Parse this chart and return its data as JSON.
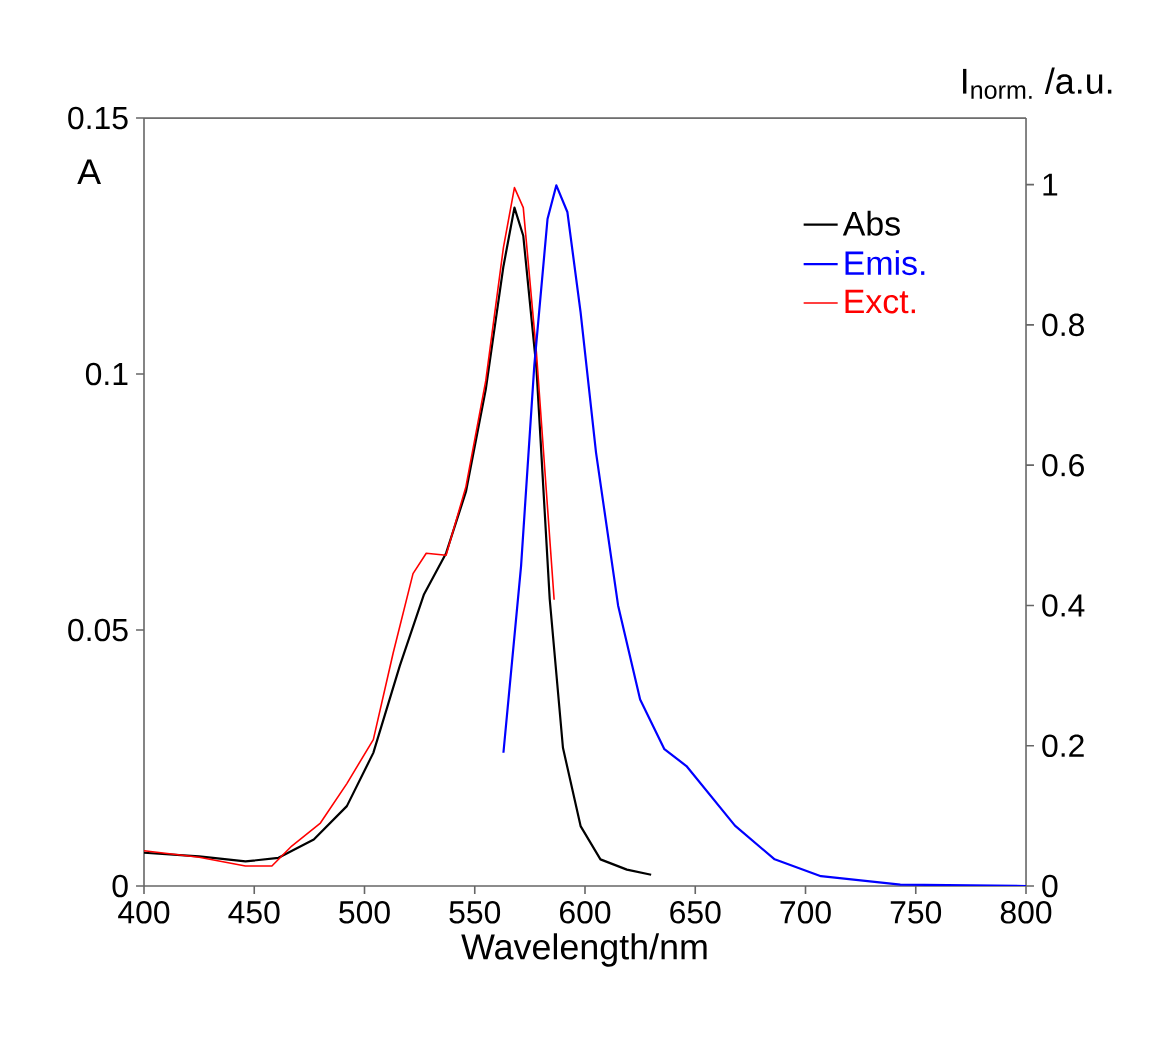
{
  "chart_data": {
    "type": "line",
    "xlabel": "Wavelength/nm",
    "ylabel": "A",
    "y2label": "I$_{norm.}$ /a.u.",
    "xlim": [
      400,
      800
    ],
    "xticks": [
      400,
      450,
      500,
      550,
      600,
      650,
      700,
      750,
      800
    ],
    "ylim": [
      0,
      0.15
    ],
    "yticks": [
      0,
      0.05,
      0.1,
      0.15
    ],
    "y2lim": [
      0,
      1.095
    ],
    "y2ticks": [
      0,
      0.2,
      0.4,
      0.6,
      0.8,
      1
    ],
    "legend": "top right",
    "grid": false,
    "marker": "none",
    "line_style": "solid",
    "series": [
      {
        "name": "Abs",
        "color": "#000000",
        "x": [
          400,
          425,
          446,
          461,
          477,
          492,
          504,
          516,
          527,
          537,
          546,
          555,
          563,
          568,
          572,
          578,
          584,
          590,
          598,
          607,
          619,
          630
        ],
        "values": [
          0.0065,
          0.0058,
          0.0048,
          0.0055,
          0.0091,
          0.0156,
          0.026,
          0.043,
          0.057,
          0.065,
          0.077,
          0.097,
          0.121,
          0.1325,
          0.127,
          0.101,
          0.056,
          0.027,
          0.0117,
          0.0052,
          0.0032,
          0.0022
        ]
      },
      {
        "name": "Emis.",
        "color": "#0000ff",
        "axis": "y2",
        "x": [
          563,
          571,
          577,
          583,
          587,
          592,
          598,
          605,
          615,
          625,
          636,
          646,
          668,
          686,
          707,
          743,
          800
        ],
        "values": [
          0.19,
          0.456,
          0.742,
          0.951,
          0.999,
          0.961,
          0.818,
          0.618,
          0.4,
          0.266,
          0.195,
          0.171,
          0.086,
          0.038,
          0.014,
          0.002,
          0
        ]
      },
      {
        "name": "Exct.",
        "color": "#ff0000",
        "x": [
          400,
          425,
          446,
          458,
          467,
          480,
          492,
          504,
          513,
          522,
          528,
          537,
          546,
          555,
          563,
          568,
          572,
          578,
          586
        ],
        "values": [
          0.0069,
          0.0056,
          0.0039,
          0.0039,
          0.0078,
          0.0123,
          0.02,
          0.0286,
          0.0455,
          0.061,
          0.065,
          0.0646,
          0.078,
          0.0987,
          0.1247,
          0.1364,
          0.1325,
          0.104,
          0.0559
        ]
      }
    ]
  }
}
